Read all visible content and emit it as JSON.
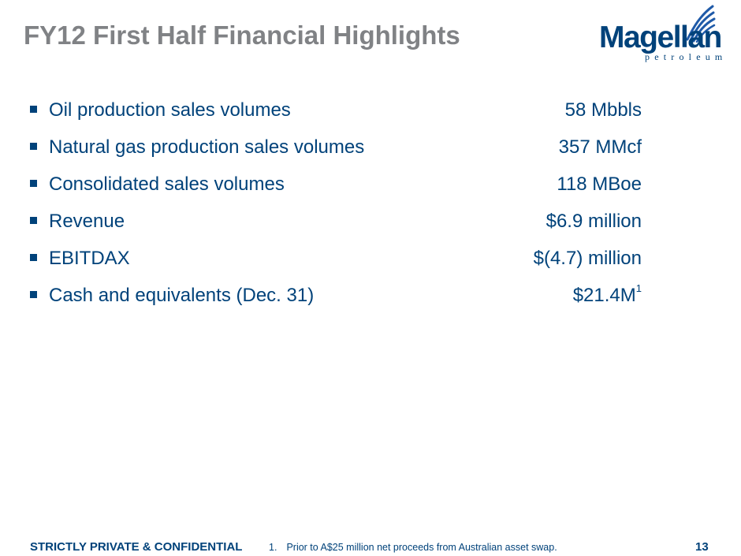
{
  "slide": {
    "title": "FY12 First Half Financial Highlights",
    "logo": {
      "name": "Magellan",
      "sub": "petroleum"
    },
    "bullets": [
      {
        "label": "Oil production sales volumes",
        "value": "58 Mbbls",
        "sup": ""
      },
      {
        "label": "Natural gas production sales volumes",
        "value": "357 MMcf",
        "sup": ""
      },
      {
        "label": "Consolidated sales volumes",
        "value": "118 MBoe",
        "sup": ""
      },
      {
        "label": "Revenue",
        "value": "$6.9 million",
        "sup": ""
      },
      {
        "label": "EBITDAX",
        "value": "$(4.7) million",
        "sup": ""
      },
      {
        "label": "Cash and equivalents (Dec. 31)",
        "value": "$21.4M",
        "sup": "1"
      }
    ],
    "footer": {
      "confidential": "STRICTLY PRIVATE & CONFIDENTIAL",
      "footnote_number": "1.",
      "footnote_text": "Prior to A$25 million net proceeds from Australian asset swap.",
      "page_number": "13"
    },
    "colors": {
      "primary": "#00427a",
      "title": "#808285",
      "logo_accent": "#1f5aa8"
    }
  }
}
